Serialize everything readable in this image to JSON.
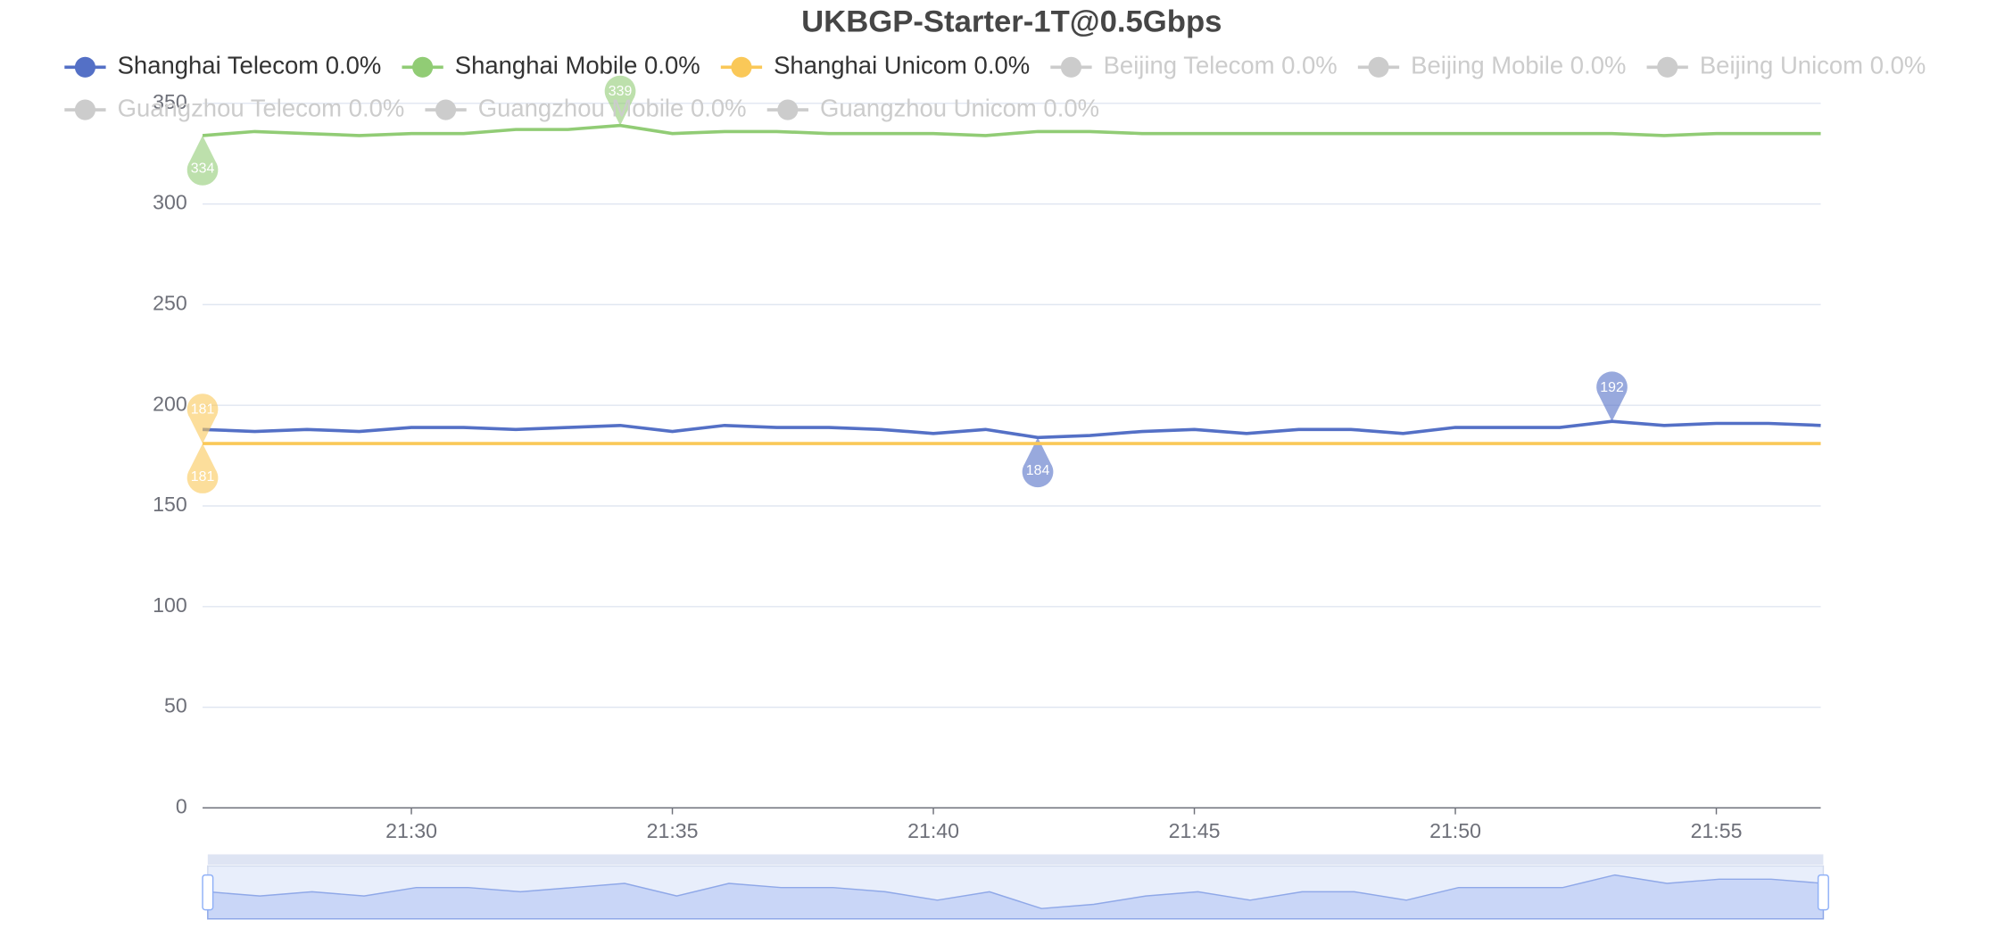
{
  "chart_data": {
    "type": "line",
    "title": "UKBGP-Starter-1T@0.5Gbps",
    "x": [
      "21:26",
      "21:27",
      "21:28",
      "21:29",
      "21:30",
      "21:31",
      "21:32",
      "21:33",
      "21:34",
      "21:35",
      "21:36",
      "21:37",
      "21:38",
      "21:39",
      "21:40",
      "21:41",
      "21:42",
      "21:43",
      "21:44",
      "21:45",
      "21:46",
      "21:47",
      "21:48",
      "21:49",
      "21:50",
      "21:51",
      "21:52",
      "21:53",
      "21:54",
      "21:55",
      "21:56",
      "21:57"
    ],
    "xticks": [
      "21:30",
      "21:35",
      "21:40",
      "21:45",
      "21:50",
      "21:55"
    ],
    "ylim": [
      0,
      350
    ],
    "yticks": [
      0,
      50,
      100,
      150,
      200,
      250,
      300,
      350
    ],
    "grid": true,
    "series": [
      {
        "name": "Shanghai Telecom 0.0%",
        "color": "#5470c6",
        "visible": true,
        "values": [
          188,
          187,
          188,
          187,
          189,
          189,
          188,
          189,
          190,
          187,
          190,
          189,
          189,
          188,
          186,
          188,
          184,
          185,
          187,
          188,
          186,
          188,
          188,
          186,
          189,
          189,
          189,
          192,
          190,
          191,
          191,
          190
        ]
      },
      {
        "name": "Shanghai Mobile 0.0%",
        "color": "#91cc75",
        "visible": true,
        "values": [
          334,
          336,
          335,
          334,
          335,
          335,
          337,
          337,
          339,
          335,
          336,
          336,
          335,
          335,
          335,
          334,
          336,
          336,
          335,
          335,
          335,
          335,
          335,
          335,
          335,
          335,
          335,
          335,
          334,
          335,
          335,
          335
        ]
      },
      {
        "name": "Shanghai Unicom 0.0%",
        "color": "#fac858",
        "visible": true,
        "values": [
          181,
          181,
          181,
          181,
          181,
          181,
          181,
          181,
          181,
          181,
          181,
          181,
          181,
          181,
          181,
          181,
          181,
          181,
          181,
          181,
          181,
          181,
          181,
          181,
          181,
          181,
          181,
          181,
          181,
          181,
          181,
          181
        ]
      },
      {
        "name": "Beijing Telecom 0.0%",
        "color": "#cccccc",
        "visible": false
      },
      {
        "name": "Beijing Mobile 0.0%",
        "color": "#cccccc",
        "visible": false
      },
      {
        "name": "Beijing Unicom 0.0%",
        "color": "#cccccc",
        "visible": false
      },
      {
        "name": "Guangzhou Telecom 0.0%",
        "color": "#cccccc",
        "visible": false
      },
      {
        "name": "Guangzhou Mobile 0.0%",
        "color": "#cccccc",
        "visible": false
      },
      {
        "name": "Guangzhou Unicom 0.0%",
        "color": "#cccccc",
        "visible": false
      }
    ]
  }
}
